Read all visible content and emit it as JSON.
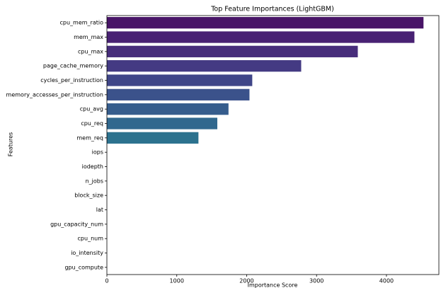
{
  "chart_data": {
    "type": "barh",
    "title": "Top Feature Importances (LightGBM)",
    "xlabel": "Importance Score",
    "ylabel": "Features",
    "categories": [
      "cpu_mem_ratio",
      "mem_max",
      "cpu_max",
      "page_cache_memory",
      "cycles_per_instruction",
      "memory_accesses_per_instruction",
      "cpu_avg",
      "cpu_req",
      "mem_req",
      "iops",
      "iodepth",
      "n_jobs",
      "block_size",
      "lat",
      "gpu_capacity_num",
      "cpu_num",
      "io_intensity",
      "gpu_compute"
    ],
    "values": [
      4530,
      4400,
      3590,
      2780,
      2080,
      2040,
      1740,
      1580,
      1310,
      0,
      0,
      0,
      0,
      0,
      0,
      0,
      0,
      0
    ],
    "colors": [
      "#481467",
      "#482173",
      "#472d7b",
      "#443a83",
      "#404688",
      "#3b528b",
      "#365d8d",
      "#31688e",
      "#2c728e",
      "#287c8e",
      "#24868e",
      "#21918c",
      "#1f9a8a",
      "#20a486",
      "#27ad81",
      "#35b779",
      "#48c16e",
      "#5ec962"
    ],
    "xlim": [
      0,
      4750
    ],
    "xticks": [
      0,
      1000,
      2000,
      3000,
      4000
    ]
  }
}
